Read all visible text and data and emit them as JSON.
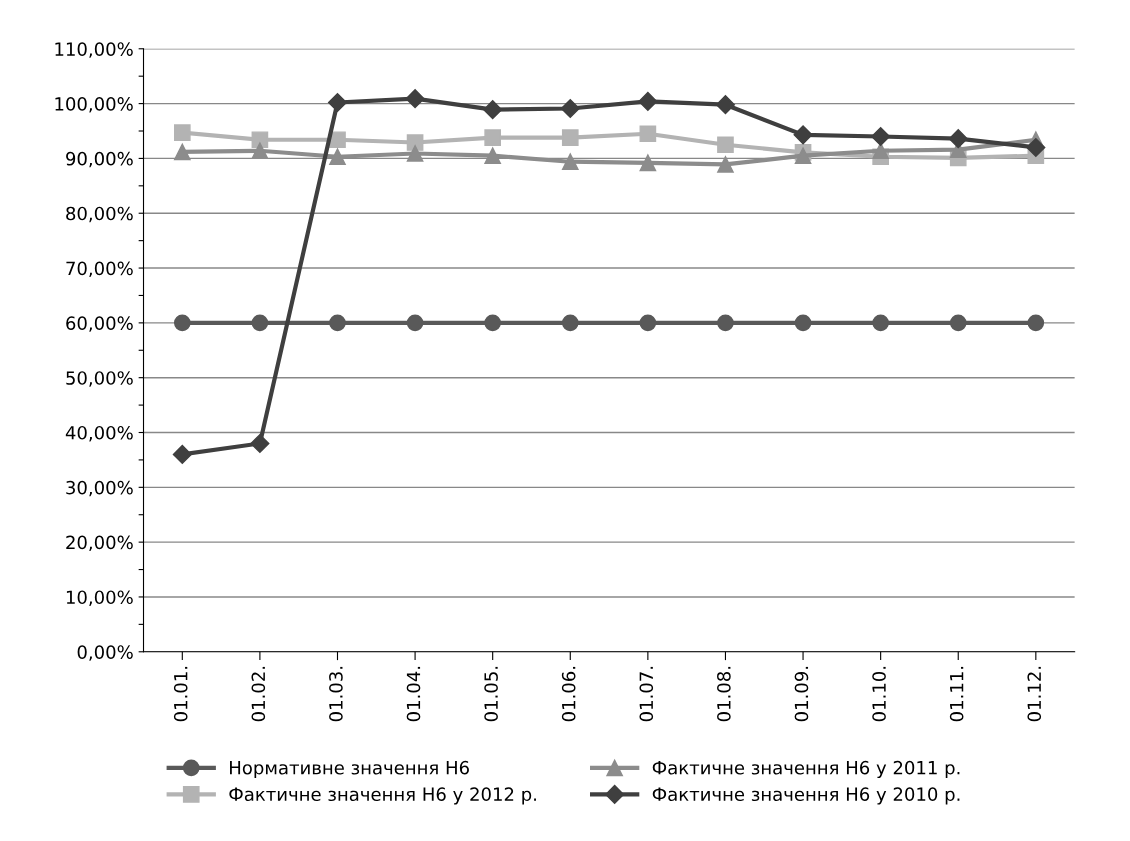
{
  "chart_data": {
    "type": "line",
    "categories": [
      "01.01.",
      "01.02.",
      "01.03.",
      "01.04.",
      "01.05.",
      "01.06.",
      "01.07.",
      "01.08.",
      "01.09.",
      "01.10.",
      "01.11.",
      "01.12."
    ],
    "series": [
      {
        "name": "Нормативне значення Н6",
        "color": "#595959",
        "marker": "circle",
        "values": [
          60,
          60,
          60,
          60,
          60,
          60,
          60,
          60,
          60,
          60,
          60,
          60
        ]
      },
      {
        "name": "Фактичне значення Н6 у 2012 р.",
        "color": "#b3b3b3",
        "marker": "square",
        "values": [
          94.7,
          93.4,
          93.4,
          92.9,
          93.8,
          93.8,
          94.5,
          92.5,
          91.1,
          90.3,
          90.1,
          90.5
        ]
      },
      {
        "name": "Фактичне значення Н6 у 2011 р.",
        "color": "#8c8c8c",
        "marker": "triangle",
        "values": [
          91.2,
          91.4,
          90.3,
          90.9,
          90.5,
          89.4,
          89.2,
          88.9,
          90.5,
          91.4,
          91.6,
          93.4
        ]
      },
      {
        "name": "Фактичне значення Н6 у 2010 р.",
        "color": "#3f3f3f",
        "marker": "diamond",
        "values": [
          36,
          38,
          100.2,
          100.9,
          98.9,
          99.1,
          100.4,
          99.8,
          94.3,
          94,
          93.6,
          92
        ]
      }
    ],
    "ylim": [
      0,
      110
    ],
    "yticks": [
      {
        "value": 0,
        "label": "0,00%"
      },
      {
        "value": 5,
        "label": null
      },
      {
        "value": 10,
        "label": "10,00%"
      },
      {
        "value": 15,
        "label": null
      },
      {
        "value": 20,
        "label": "20,00%"
      },
      {
        "value": 25,
        "label": null
      },
      {
        "value": 30,
        "label": "30,00%"
      },
      {
        "value": 35,
        "label": null
      },
      {
        "value": 40,
        "label": "40,00%"
      },
      {
        "value": 45,
        "label": null
      },
      {
        "value": 50,
        "label": "50,00%"
      },
      {
        "value": 55,
        "label": null
      },
      {
        "value": 60,
        "label": "60,00%"
      },
      {
        "value": 65,
        "label": null
      },
      {
        "value": 70,
        "label": "70,00%"
      },
      {
        "value": 75,
        "label": null
      },
      {
        "value": 80,
        "label": "80,00%"
      },
      {
        "value": 85,
        "label": null
      },
      {
        "value": 90,
        "label": "90,00%"
      },
      {
        "value": 95,
        "label": null
      },
      {
        "value": 100,
        "label": "100,00%"
      },
      {
        "value": 105,
        "label": null
      },
      {
        "value": 110,
        "label": "110,00%"
      }
    ],
    "grid": "y",
    "legend": "bottom",
    "line_style": "solid"
  }
}
